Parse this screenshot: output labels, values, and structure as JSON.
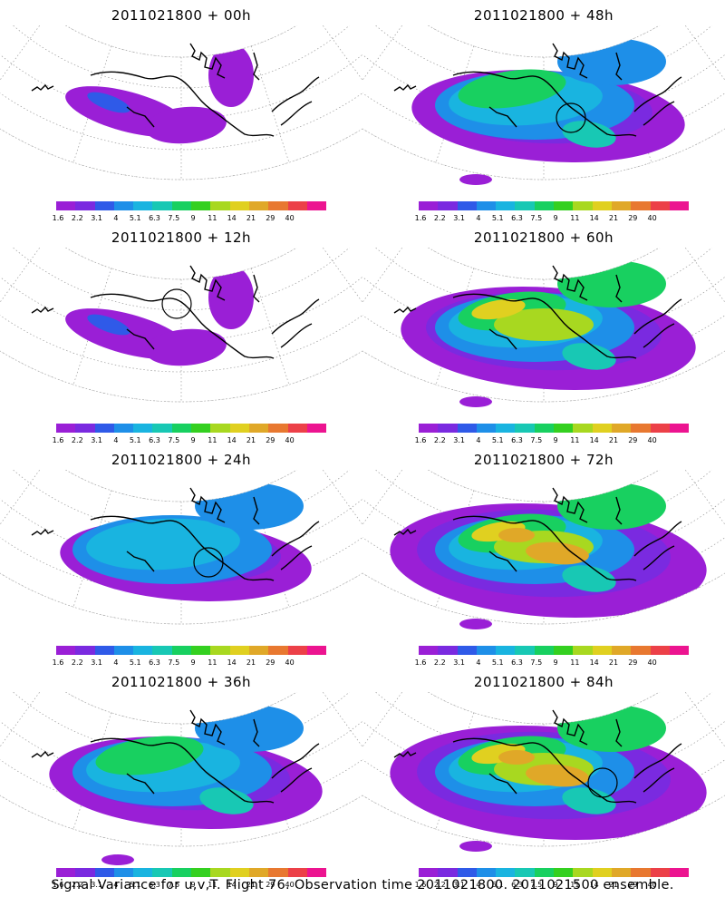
{
  "panels": [
    {
      "title": "2011021800 + 00h",
      "level": 0,
      "circle": null
    },
    {
      "title": "2011021800 + 48h",
      "level": 2,
      "circle": "lower-right"
    },
    {
      "title": "2011021800 + 12h",
      "level": 0,
      "circle": "upper-center"
    },
    {
      "title": "2011021800 + 60h",
      "level": 3,
      "circle": null
    },
    {
      "title": "2011021800 + 24h",
      "level": 1,
      "circle": "lower-right"
    },
    {
      "title": "2011021800 + 72h",
      "level": 4,
      "circle": null
    },
    {
      "title": "2011021800 + 36h",
      "level": 2,
      "circle": null
    },
    {
      "title": "2011021800 + 84h",
      "level": 4,
      "circle": "right"
    }
  ],
  "colorbar": {
    "ticks": [
      "1.6",
      "2.2",
      "3.1",
      "4",
      "5.1",
      "6.3",
      "7.5",
      "9",
      "11",
      "14",
      "21",
      "29",
      "40"
    ],
    "colors": [
      "#9a1fd6",
      "#7a2ae0",
      "#2f5ae8",
      "#1e8fe8",
      "#19b4e0",
      "#18c8b4",
      "#18d060",
      "#34d020",
      "#a8d820",
      "#e0d020",
      "#e0a828",
      "#e87830",
      "#ec4048",
      "#ec1490"
    ]
  },
  "caption": "Signal Variance for u,v,T. Flight 76. Observation time 2011021800. 2011021500 ensemble."
}
